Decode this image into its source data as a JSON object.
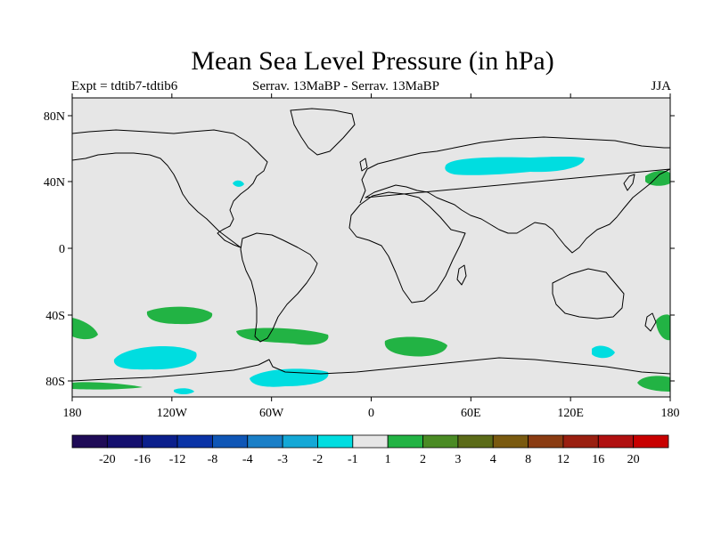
{
  "title": "Mean Sea Level Pressure (in hPa)",
  "experiment": "Expt = tdtib7-tdtib6",
  "comparison": "Serrav.   13MaBP - Serrav.   13MaBP",
  "season": "JJA",
  "colors": {
    "ocean_background": "#e6e6e6",
    "positive_anomaly": "#22b344",
    "negative_anomaly": "#00dde0",
    "coastline": "#000000"
  },
  "map": {
    "lon_ticks": [
      "180",
      "120W",
      "60W",
      "0",
      "60E",
      "120E",
      "180"
    ],
    "lat_ticks": [
      "80N",
      "40N",
      "0",
      "40S",
      "80S"
    ]
  },
  "colorbar": {
    "labels": [
      "-20",
      "-16",
      "-12",
      "-8",
      "-4",
      "-3",
      "-2",
      "-1",
      "1",
      "2",
      "3",
      "4",
      "8",
      "12",
      "16",
      "20"
    ],
    "colors": [
      "#1f0b57",
      "#140f6e",
      "#0b1f8c",
      "#0a33a6",
      "#0f56b6",
      "#1a7fc7",
      "#14a8d6",
      "#00dde0",
      "#e6e6e6",
      "#22b344",
      "#4a8b24",
      "#5b6b18",
      "#7a5a10",
      "#8a3c12",
      "#9a1f10",
      "#b01010",
      "#c80000"
    ]
  }
}
